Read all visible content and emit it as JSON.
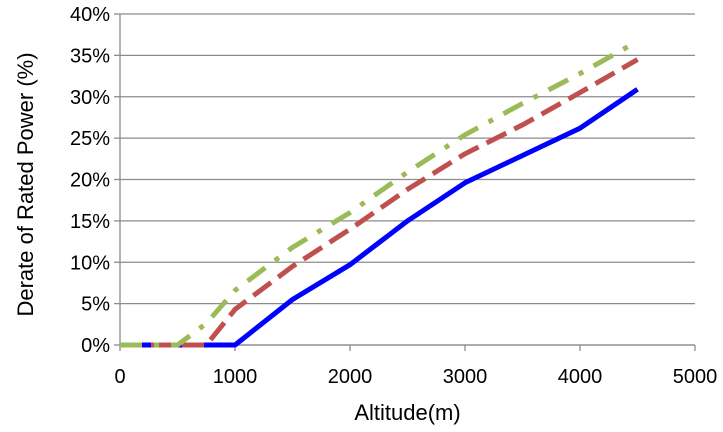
{
  "chart_data": {
    "type": "line",
    "title": "",
    "xlabel": "Altitude(m)",
    "ylabel": "Derate of Rated Power (%)",
    "xlim": [
      0,
      5000
    ],
    "ylim": [
      0,
      40
    ],
    "x_ticks": [
      0,
      1000,
      2000,
      3000,
      4000,
      5000
    ],
    "x_tick_labels": [
      "0",
      "1000",
      "2000",
      "3000",
      "4000",
      "5000"
    ],
    "y_ticks": [
      0,
      5,
      10,
      15,
      20,
      25,
      30,
      35,
      40
    ],
    "y_tick_labels": [
      "0%",
      "5%",
      "10%",
      "15%",
      "20%",
      "25%",
      "30%",
      "35%",
      "40%"
    ],
    "grid": "horizontal",
    "legend": "none",
    "series": [
      {
        "color": "#0000ff",
        "style": "solid",
        "x": [
          0,
          500,
          1000,
          1500,
          2000,
          2500,
          3000,
          3500,
          4000,
          4500
        ],
        "y": [
          0,
          0,
          0,
          5.5,
          9.7,
          15.0,
          19.6,
          22.9,
          26.2,
          30.9
        ]
      },
      {
        "color": "#c0504d",
        "style": "dash",
        "x": [
          0,
          500,
          750,
          1000,
          1500,
          2000,
          2500,
          3000,
          3500,
          4000,
          4500
        ],
        "y": [
          0,
          0,
          0,
          4.3,
          9.5,
          14.0,
          18.8,
          23.1,
          26.6,
          30.5,
          34.5
        ]
      },
      {
        "color": "#9bbb59",
        "style": "dashdot",
        "x": [
          0,
          500,
          750,
          1000,
          1500,
          2000,
          2500,
          3000,
          3500,
          4000,
          4500
        ],
        "y": [
          0,
          0,
          2.6,
          6.6,
          11.8,
          16.0,
          20.9,
          25.4,
          29.2,
          32.8,
          36.7
        ]
      }
    ]
  }
}
